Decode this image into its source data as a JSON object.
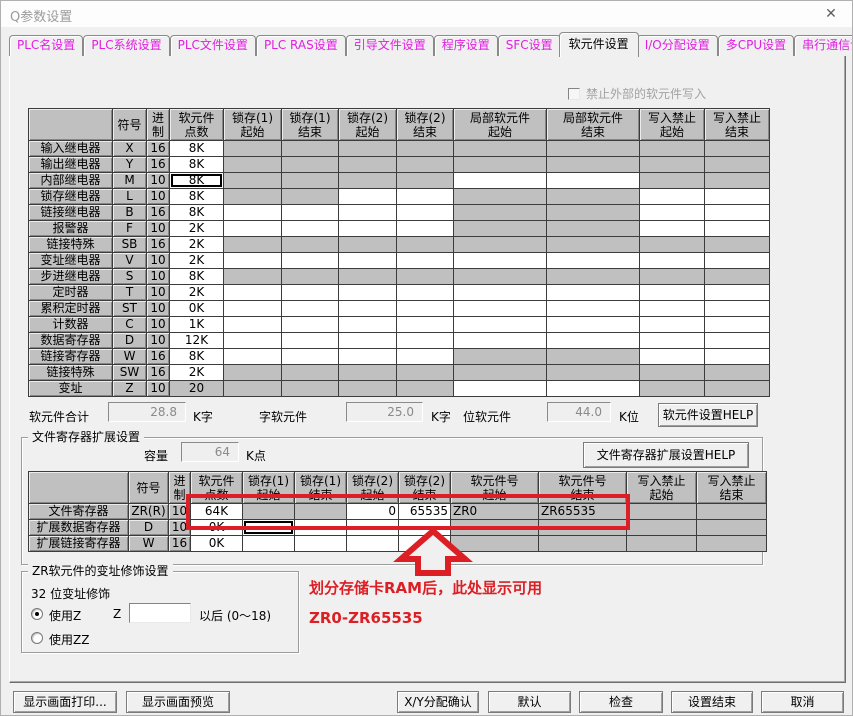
{
  "window": {
    "title": "Q参数设置",
    "close_glyph": "✕"
  },
  "colors": {
    "tab_text": "#e020e0",
    "highlight_red": "#dc1f24",
    "cell_gray": "#c0c0c0"
  },
  "tabs": [
    {
      "label": "PLC名设置",
      "active": false
    },
    {
      "label": "PLC系统设置",
      "active": false
    },
    {
      "label": "PLC文件设置",
      "active": false
    },
    {
      "label": "PLC RAS设置",
      "active": false
    },
    {
      "label": "引导文件设置",
      "active": false
    },
    {
      "label": "程序设置",
      "active": false
    },
    {
      "label": "SFC设置",
      "active": false
    },
    {
      "label": "软元件设置",
      "active": true
    },
    {
      "label": "I/O分配设置",
      "active": false
    },
    {
      "label": "多CPU设置",
      "active": false
    },
    {
      "label": "串行通信设置",
      "active": false
    }
  ],
  "write_protect_checkbox": "禁止外部的软元件写入",
  "device_table": {
    "headers": [
      "",
      "符号",
      "进\n制",
      "软元件\n点数",
      "锁存(1)\n起始",
      "锁存(1)\n结束",
      "锁存(2)\n起始",
      "锁存(2)\n结束",
      "局部软元件\n起始",
      "局部软元件\n结束",
      "写入禁止\n起始",
      "写入禁止\n结束"
    ],
    "rows": [
      {
        "name": "输入继电器",
        "symbol": "X",
        "base": "16",
        "points": "8K",
        "points_state": "w",
        "cells": [
          "g",
          "g",
          "g",
          "g",
          "g",
          "g",
          "g",
          "g"
        ]
      },
      {
        "name": "输出继电器",
        "symbol": "Y",
        "base": "16",
        "points": "8K",
        "points_state": "w",
        "cells": [
          "g",
          "g",
          "g",
          "g",
          "g",
          "g",
          "g",
          "g"
        ]
      },
      {
        "name": "内部继电器",
        "symbol": "M",
        "base": "10",
        "points": "8K",
        "points_state": "f",
        "cells": [
          "g",
          "g",
          "g",
          "g",
          "w",
          "w",
          "g",
          "g"
        ]
      },
      {
        "name": "锁存继电器",
        "symbol": "L",
        "base": "10",
        "points": "8K",
        "points_state": "w",
        "cells": [
          "g",
          "g",
          "w",
          "w",
          "g",
          "g",
          "w",
          "w"
        ]
      },
      {
        "name": "链接继电器",
        "symbol": "B",
        "base": "16",
        "points": "8K",
        "points_state": "w",
        "cells": [
          "w",
          "w",
          "w",
          "w",
          "g",
          "g",
          "w",
          "w"
        ]
      },
      {
        "name": "报警器",
        "symbol": "F",
        "base": "10",
        "points": "2K",
        "points_state": "w",
        "cells": [
          "w",
          "w",
          "w",
          "w",
          "g",
          "g",
          "w",
          "w"
        ]
      },
      {
        "name": "链接特殊",
        "symbol": "SB",
        "base": "16",
        "points": "2K",
        "points_state": "w",
        "cells": [
          "g",
          "g",
          "g",
          "g",
          "g",
          "g",
          "g",
          "g"
        ]
      },
      {
        "name": "变址继电器",
        "symbol": "V",
        "base": "10",
        "points": "2K",
        "points_state": "w",
        "cells": [
          "w",
          "w",
          "w",
          "w",
          "w",
          "w",
          "w",
          "w"
        ]
      },
      {
        "name": "步进继电器",
        "symbol": "S",
        "base": "10",
        "points": "8K",
        "points_state": "w",
        "cells": [
          "g",
          "g",
          "g",
          "g",
          "g",
          "g",
          "g",
          "g"
        ]
      },
      {
        "name": "定时器",
        "symbol": "T",
        "base": "10",
        "points": "2K",
        "points_state": "w",
        "cells": [
          "w",
          "w",
          "w",
          "w",
          "w",
          "w",
          "w",
          "w"
        ]
      },
      {
        "name": "累积定时器",
        "symbol": "ST",
        "base": "10",
        "points": "0K",
        "points_state": "w",
        "cells": [
          "w",
          "w",
          "w",
          "w",
          "w",
          "w",
          "w",
          "w"
        ]
      },
      {
        "name": "计数器",
        "symbol": "C",
        "base": "10",
        "points": "1K",
        "points_state": "w",
        "cells": [
          "w",
          "w",
          "w",
          "w",
          "w",
          "w",
          "w",
          "w"
        ]
      },
      {
        "name": "数据寄存器",
        "symbol": "D",
        "base": "10",
        "points": "12K",
        "points_state": "w",
        "cells": [
          "w",
          "w",
          "w",
          "w",
          "w",
          "w",
          "w",
          "w"
        ]
      },
      {
        "name": "链接寄存器",
        "symbol": "W",
        "base": "16",
        "points": "8K",
        "points_state": "w",
        "cells": [
          "w",
          "w",
          "w",
          "w",
          "g",
          "g",
          "w",
          "w"
        ]
      },
      {
        "name": "链接特殊",
        "symbol": "SW",
        "base": "16",
        "points": "2K",
        "points_state": "w",
        "cells": [
          "g",
          "g",
          "g",
          "g",
          "g",
          "g",
          "g",
          "g"
        ]
      },
      {
        "name": "变址",
        "symbol": "Z",
        "base": "10",
        "points": "20",
        "points_state": "g",
        "cells": [
          "g",
          "g",
          "g",
          "g",
          "w",
          "w",
          "g",
          "g"
        ]
      }
    ]
  },
  "totals": {
    "device_total_label": "软元件合计",
    "device_total_value": "28.8",
    "device_total_unit": "K字",
    "word_label": "字软元件",
    "word_value": "25.0",
    "word_unit": "K字",
    "bit_label": "位软元件",
    "bit_value": "44.0",
    "bit_unit": "K位",
    "help_button": "软元件设置HELP"
  },
  "file_register_group": {
    "title": "文件寄存器扩展设置",
    "capacity_label": "容量",
    "capacity_value": "64",
    "capacity_unit": "K点",
    "help_button": "文件寄存器扩展设置HELP",
    "table": {
      "headers": [
        "",
        "符号",
        "进\n制",
        "软元件\n点数",
        "锁存(1)\n起始",
        "锁存(1)\n结束",
        "锁存(2)\n起始",
        "锁存(2)\n结束",
        "软元件号\n起始",
        "软元件号\n结束",
        "写入禁止\n起始",
        "写入禁止\n结束"
      ],
      "rows": [
        {
          "name": "文件寄存器",
          "symbol": "ZR(R)",
          "base": "10",
          "points": "64K",
          "points_state": "w",
          "cells": [
            {
              "v": "",
              "s": "g"
            },
            {
              "v": "",
              "s": "g"
            },
            {
              "v": "0",
              "s": "w",
              "align": "right"
            },
            {
              "v": "65535",
              "s": "w",
              "align": "right"
            },
            {
              "v": "ZR0",
              "s": "g",
              "align": "left"
            },
            {
              "v": "ZR65535",
              "s": "g",
              "align": "left"
            },
            {
              "v": "",
              "s": "g"
            },
            {
              "v": "",
              "s": "g"
            }
          ]
        },
        {
          "name": "扩展数据寄存器",
          "symbol": "D",
          "base": "10",
          "points": "0K",
          "points_state": "w",
          "cells": [
            {
              "v": "",
              "s": "f"
            },
            {
              "v": "",
              "s": "w"
            },
            {
              "v": "",
              "s": "w"
            },
            {
              "v": "",
              "s": "w"
            },
            {
              "v": "",
              "s": "g"
            },
            {
              "v": "",
              "s": "g"
            },
            {
              "v": "",
              "s": "g"
            },
            {
              "v": "",
              "s": "g"
            }
          ]
        },
        {
          "name": "扩展链接寄存器",
          "symbol": "W",
          "base": "16",
          "points": "0K",
          "points_state": "w",
          "cells": [
            {
              "v": "",
              "s": "w"
            },
            {
              "v": "",
              "s": "w"
            },
            {
              "v": "",
              "s": "w"
            },
            {
              "v": "",
              "s": "w"
            },
            {
              "v": "",
              "s": "g"
            },
            {
              "v": "",
              "s": "g"
            },
            {
              "v": "",
              "s": "g"
            },
            {
              "v": "",
              "s": "g"
            }
          ]
        }
      ]
    }
  },
  "zr_group": {
    "title": "ZR软元件的变址修饰设置",
    "subtitle": "32 位变址修饰",
    "radio_z_label": "使用Z",
    "z_prefix": "Z",
    "z_value": "",
    "z_suffix": "以后 (0～18)",
    "radio_zz_label": "使用ZZ",
    "selected": "z"
  },
  "annotation": {
    "line1": "划分存储卡RAM后，此处显示可用",
    "line2": "ZR0-ZR65535"
  },
  "footer_buttons": [
    {
      "label": "显示画面打印..."
    },
    {
      "label": "显示画面预览"
    },
    {
      "label": "X/Y分配确认"
    },
    {
      "label": "默认"
    },
    {
      "label": "检查"
    },
    {
      "label": "设置结束"
    },
    {
      "label": "取消"
    }
  ]
}
